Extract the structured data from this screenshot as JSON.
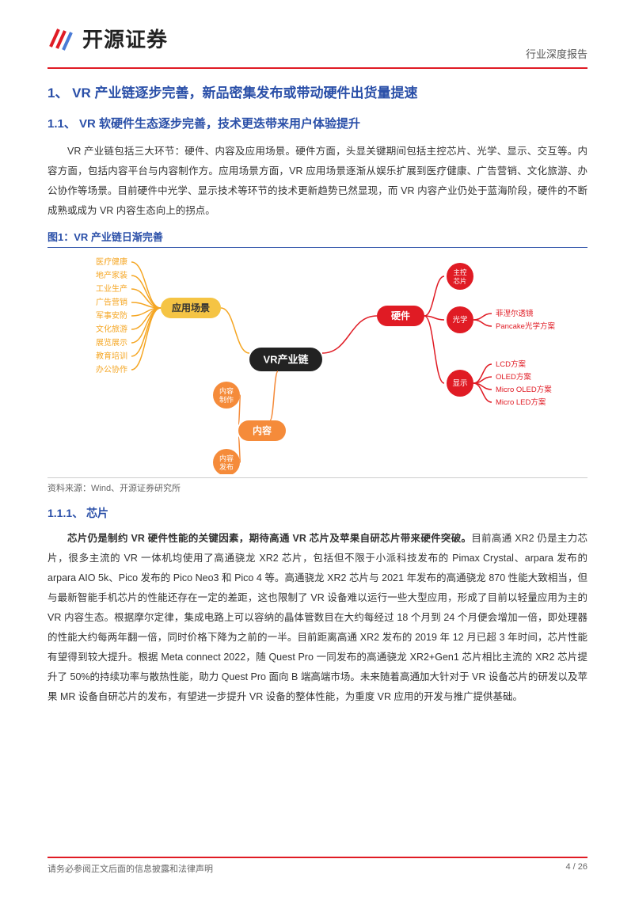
{
  "header": {
    "company_name": "开源证券",
    "doc_type": "行业深度报告"
  },
  "section1": {
    "h1": "1、 VR 产业链逐步完善，新品密集发布或带动硬件出货量提速",
    "h2": "1.1、   VR 软硬件生态逐步完善，技术更迭带来用户体验提升",
    "para1": "VR 产业链包括三大环节：硬件、内容及应用场景。硬件方面，头显关键期间包括主控芯片、光学、显示、交互等。内容方面，包括内容平台与内容制作方。应用场景方面，VR 应用场景逐渐从娱乐扩展到医疗健康、广告营销、文化旅游、办公协作等场景。目前硬件中光学、显示技术等环节的技术更新趋势已然显现，而 VR 内容产业仍处于蓝海阶段，硬件的不断成熟或成为 VR 内容生态向上的拐点。"
  },
  "figure1": {
    "title": "图1：VR 产业链日渐完善",
    "source": "资料来源：Wind、开源证券研究所",
    "center": {
      "label": "VR产业链",
      "bg": "#222222",
      "text": "#ffffff"
    },
    "branches": {
      "application": {
        "label": "应用场景",
        "bg": "#f5c444",
        "text": "#333333",
        "line": "#f5a623",
        "leaves_color": "#f5a623",
        "leaves": [
          "医疗健康",
          "地产家装",
          "工业生产",
          "广告营销",
          "军事安防",
          "文化旅游",
          "展览展示",
          "教育培训",
          "办公协作"
        ]
      },
      "hardware": {
        "label": "硬件",
        "bg": "#e01b24",
        "text": "#ffffff",
        "line": "#e01b24",
        "children": [
          {
            "label": "主控芯片",
            "bg": "#e01b24",
            "text": "#ffffff",
            "leaves": []
          },
          {
            "label": "光学",
            "bg": "#e01b24",
            "text": "#ffffff",
            "leaves": [
              "菲涅尔透镜",
              "Pancake光学方案"
            ],
            "leaves_color": "#e01b24"
          },
          {
            "label": "显示",
            "bg": "#e01b24",
            "text": "#ffffff",
            "leaves": [
              "LCD方案",
              "OLED方案",
              "Micro OLED方案",
              "Micro LED方案"
            ],
            "leaves_color": "#e01b24"
          }
        ]
      },
      "content": {
        "label": "内容",
        "bg": "#f58b3a",
        "text": "#ffffff",
        "line": "#f58b3a",
        "children": [
          {
            "label": "内容制作",
            "bg": "#f58b3a",
            "text": "#ffffff"
          },
          {
            "label": "内容发布",
            "bg": "#f58b3a",
            "text": "#ffffff"
          }
        ]
      }
    }
  },
  "section111": {
    "h3": "1.1.1、 芯片",
    "para_bold": "芯片仍是制约 VR 硬件性能的关键因素，期待高通 VR 芯片及苹果自研芯片带来硬件突破。",
    "para_rest": "目前高通 XR2 仍是主力芯片，很多主流的 VR 一体机均使用了高通骁龙 XR2 芯片，包括但不限于小派科技发布的 Pimax Crystal、arpara 发布的 arpara AIO 5k、Pico 发布的 Pico Neo3 和 Pico 4 等。高通骁龙 XR2 芯片与 2021 年发布的高通骁龙 870 性能大致相当，但与最新智能手机芯片的性能还存在一定的差距，这也限制了 VR 设备难以运行一些大型应用，形成了目前以轻量应用为主的 VR 内容生态。根据摩尔定律，集成电路上可以容纳的晶体管数目在大约每经过 18 个月到 24 个月便会增加一倍，即处理器的性能大约每两年翻一倍，同时价格下降为之前的一半。目前距离高通 XR2 发布的 2019 年 12 月已超 3 年时间，芯片性能有望得到较大提升。根据 Meta connect 2022，随 Quest Pro 一同发布的高通骁龙 XR2+Gen1 芯片相比主流的 XR2 芯片提升了 50%的持续功率与散热性能，助力 Quest Pro 面向 B 端高端市场。未来随着高通加大针对于 VR 设备芯片的研发以及苹果 MR 设备自研芯片的发布，有望进一步提升 VR 设备的整体性能，为重度 VR 应用的开发与推广提供基础。"
  },
  "footer": {
    "disclaimer": "请务必参阅正文后面的信息披露和法律声明",
    "page": "4 / 26"
  },
  "colors": {
    "brand_red": "#e01b24",
    "brand_blue": "#2a4fa8",
    "text": "#333333",
    "muted": "#666666"
  }
}
